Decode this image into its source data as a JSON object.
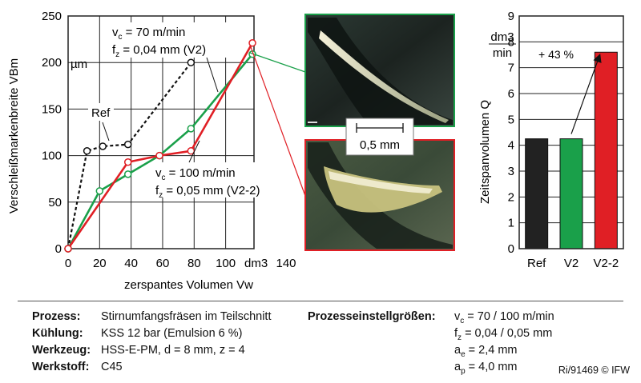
{
  "chart_data": [
    {
      "type": "line",
      "ylabel": "Verschleißmarkenbreite VBm",
      "xlabel": "zerspantes Volumen Vw",
      "x_unit": "dm3",
      "y_unit": "µm",
      "xlim": [
        0,
        140
      ],
      "ylim": [
        0,
        250
      ],
      "xticks": [
        "0",
        "20",
        "40",
        "60",
        "80",
        "100",
        "140"
      ],
      "yticks": [
        "0",
        "50",
        "100",
        "150",
        "200",
        "250"
      ],
      "grid": true,
      "series": [
        {
          "name": "Ref",
          "color": "#111111",
          "dashed": true,
          "points": [
            [
              0,
              0
            ],
            [
              12,
              105
            ],
            [
              22,
              110
            ],
            [
              38,
              112
            ],
            [
              78,
              200
            ]
          ]
        },
        {
          "name": "V2",
          "color": "#1aa04a",
          "points": [
            [
              0,
              0
            ],
            [
              20,
              62
            ],
            [
              38,
              80
            ],
            [
              58,
              100
            ],
            [
              78,
              129
            ],
            [
              117,
              209
            ]
          ]
        },
        {
          "name": "V2-2",
          "color": "#e01f25",
          "points": [
            [
              0,
              0
            ],
            [
              38,
              93
            ],
            [
              58,
              100
            ],
            [
              78,
              105
            ],
            [
              117,
              221
            ]
          ]
        }
      ],
      "annotations": {
        "ref": "Ref",
        "v2_speed_sym": "v",
        "v2_speed_sub": "c",
        "v2_speed_val": "= 70 m/min",
        "v2_feed_sym": "f",
        "v2_feed_sub": "z",
        "v2_feed_val": "= 0,04 mm (V2)",
        "v22_speed_sym": "v",
        "v22_speed_sub": "c",
        "v22_speed_val": "= 100 m/min",
        "v22_feed_sym": "f",
        "v22_feed_sub": "z",
        "v22_feed_val": "= 0,05 mm (V2-2)"
      }
    },
    {
      "type": "bar",
      "ylabel": "Zeitspanvolumen Q",
      "y_unit_num": "dm3",
      "y_unit_den": "min",
      "categories": [
        "Ref",
        "V2",
        "V2-2"
      ],
      "values": [
        4.25,
        4.25,
        7.6
      ],
      "colors": [
        "#222222",
        "#1aa04a",
        "#e01f25"
      ],
      "ylim": [
        0,
        9
      ],
      "yticks": [
        "0",
        "1",
        "2",
        "3",
        "4",
        "5",
        "6",
        "7",
        "8",
        "9"
      ],
      "annotation": "+ 43 %"
    }
  ],
  "scale_bar": "0,5 mm",
  "footer": {
    "left": [
      {
        "label": "Prozess:",
        "value": "Stirnumfangsfräsen im Teilschnitt"
      },
      {
        "label": "Kühlung:",
        "value": "KSS 12 bar (Emulsion 6 %)"
      },
      {
        "label": "Werkzeug:",
        "value": "HSS-E-PM, d = 8 mm, z = 4"
      },
      {
        "label": "Werkstoff:",
        "value": "C45"
      }
    ],
    "right_label": "Prozesseinstellgrößen:",
    "right": [
      {
        "sym": "v",
        "sub": "c",
        "val": "= 70 / 100 m/min"
      },
      {
        "sym": "f",
        "sub": "z",
        "val": "= 0,04 / 0,05 mm"
      },
      {
        "sym": "a",
        "sub": "e",
        "val": "= 2,4 mm"
      },
      {
        "sym": "a",
        "sub": "p",
        "val": "= 4,0 mm"
      }
    ],
    "credit": "Ri/91469 © IFW"
  }
}
